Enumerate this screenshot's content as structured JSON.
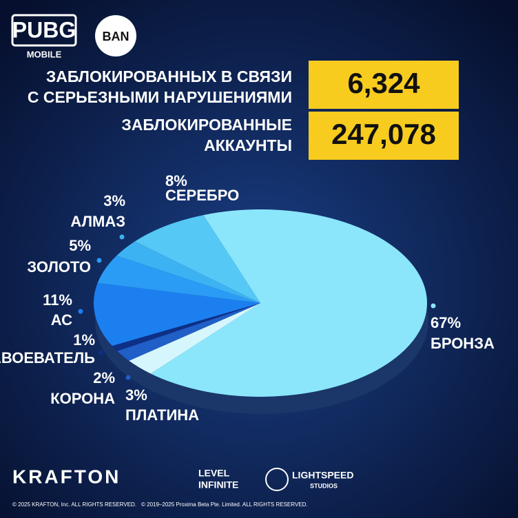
{
  "header": {
    "logo": "PUBG",
    "logo_sub": "MOBILE",
    "badge": "BAN",
    "rows": [
      {
        "label": [
          "ЗАБЛОКИРОВАННЫХ В СВЯЗИ",
          "С СЕРЬЕЗНЫМИ НАРУШЕНИЯМИ"
        ],
        "value": "6,324"
      },
      {
        "label": [
          "ЗАБЛОКИРОВАННЫЕ",
          "АККАУНТЫ"
        ],
        "value": "247,078"
      }
    ]
  },
  "chart_data": {
    "type": "pie",
    "categories": [
      "БРОНЗА",
      "ПЛАТИНА",
      "КОРОНА",
      "ЗАВОЕВАТЕЛЬ",
      "АС",
      "ЗОЛОТО",
      "АЛМАЗ",
      "СЕРЕБРО"
    ],
    "values": [
      67,
      3,
      2,
      1,
      11,
      5,
      3,
      8
    ],
    "value_labels": [
      "67%",
      "3%",
      "2%",
      "1%",
      "11%",
      "5%",
      "3%",
      "8%"
    ],
    "colors": [
      "#8be6fb",
      "#d6f6fd",
      "#1f5fc7",
      "#0d2f86",
      "#1c7ff0",
      "#2a9cf5",
      "#3db2f2",
      "#55c8f5"
    ]
  },
  "footer": {
    "brands": [
      "KRAFTON",
      "LEVEL",
      "INFINITE",
      "LIGHTSPEED",
      "STUDIOS"
    ],
    "copyright": [
      "© 2025 KRAFTON, Inc. ALL RIGHTS RESERVED.",
      "© 2019–2025 Proxima Beta Pte. Limited. ALL RIGHTS RESERVED."
    ]
  }
}
